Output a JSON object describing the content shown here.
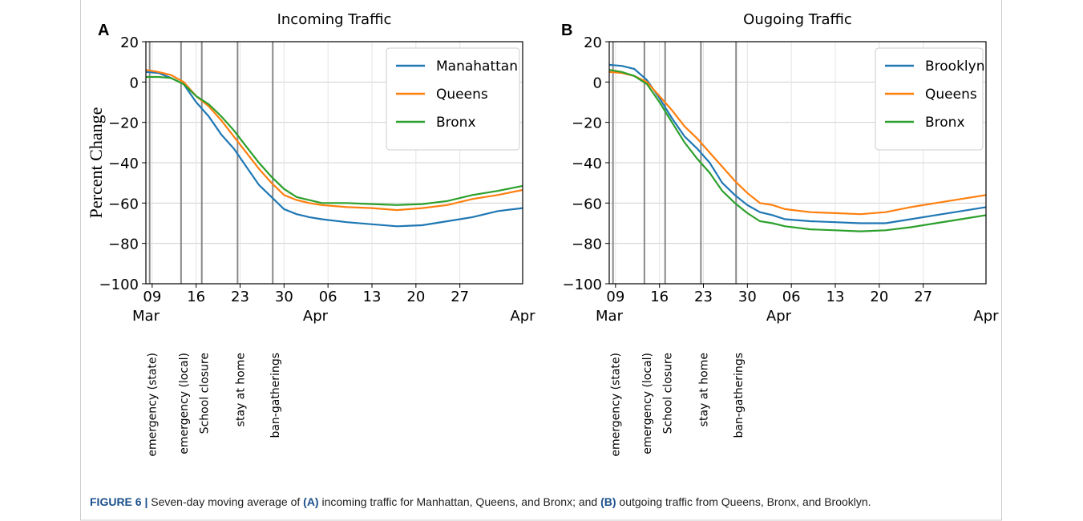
{
  "chart_data": [
    {
      "type": "line",
      "panel": "A",
      "title": "Incoming Traffic",
      "ylabel": "Percent Change",
      "x": [
        8,
        10,
        12,
        14,
        16,
        18,
        20,
        22,
        24,
        26,
        28,
        30,
        32,
        34,
        36,
        40,
        44,
        48,
        52,
        56,
        60,
        64,
        68
      ],
      "series": [
        {
          "name": "Manahattan",
          "color": "#1f77b4",
          "values": [
            5,
            4.5,
            2,
            -1,
            -10,
            -17,
            -26,
            -33,
            -42,
            -51,
            -57,
            -63,
            -65.5,
            -67,
            -68,
            -69.5,
            -70.5,
            -71.5,
            -71,
            -69,
            -67,
            -64,
            -62.5
          ]
        },
        {
          "name": "Queens",
          "color": "#ff7f0e",
          "values": [
            6,
            5,
            3.5,
            0,
            -7,
            -12,
            -19,
            -27,
            -35,
            -43,
            -50,
            -56,
            -58.5,
            -60,
            -61,
            -62,
            -62.5,
            -63.5,
            -62.5,
            -61,
            -58,
            -56,
            -53.5
          ]
        },
        {
          "name": "Bronx",
          "color": "#2ca02c",
          "values": [
            2.5,
            2.5,
            2,
            -1,
            -7,
            -11,
            -17,
            -24,
            -32,
            -40,
            -47,
            -53,
            -57,
            -58.5,
            -60,
            -60,
            -60.5,
            -61,
            -60.5,
            -59,
            -56,
            -54,
            -51.5
          ]
        }
      ],
      "xlim": [
        8,
        68
      ],
      "ylim": [
        -100,
        20
      ],
      "xticks": [
        {
          "value": 9,
          "label": "09"
        },
        16,
        23,
        30,
        {
          "value": 37,
          "label": "06"
        },
        {
          "value": 44,
          "label": "13"
        },
        {
          "value": 51,
          "label": "20"
        },
        {
          "value": 58,
          "label": "27"
        }
      ],
      "month_labels": [
        {
          "value": 8,
          "label": "Mar"
        },
        {
          "value": 35,
          "label": "Apr"
        },
        {
          "value": 68,
          "label": "Apr"
        }
      ],
      "yticks": [
        20,
        0,
        {
          "value": -20,
          "label": "−20"
        },
        {
          "value": -40,
          "label": "−40"
        },
        {
          "value": -60,
          "label": "−60"
        },
        {
          "value": -80,
          "label": "−80"
        },
        {
          "value": -100,
          "label": "−100"
        }
      ],
      "grid": true,
      "legend": "upper right",
      "events": [
        {
          "label": "emergency (state)",
          "x": 8.6
        },
        {
          "label": "emergency (local)",
          "x": 13.6
        },
        {
          "label": "School closure",
          "x": 16.9
        },
        {
          "label": "stay at home",
          "x": 22.6
        },
        {
          "label": "ban-gatherings",
          "x": 28.2
        }
      ]
    },
    {
      "type": "line",
      "panel": "B",
      "title": "Ougoing Traffic",
      "x": [
        8,
        10,
        12,
        14,
        16,
        18,
        20,
        22,
        24,
        26,
        28,
        30,
        32,
        34,
        36,
        40,
        44,
        48,
        52,
        56,
        60,
        64,
        68
      ],
      "series": [
        {
          "name": "Brooklyn",
          "color": "#1f77b4",
          "values": [
            8.5,
            8,
            6.5,
            1,
            -8,
            -18,
            -27,
            -33,
            -40,
            -50,
            -56,
            -61,
            -64.5,
            -66,
            -68,
            -69,
            -69.5,
            -70,
            -70,
            -68,
            -66,
            -64,
            -62
          ]
        },
        {
          "name": "Queens",
          "color": "#ff7f0e",
          "values": [
            5,
            4.5,
            3,
            0,
            -7,
            -14,
            -22,
            -28,
            -35,
            -42,
            -49,
            -55,
            -60,
            -61,
            -63,
            -64.5,
            -65,
            -65.5,
            -64.5,
            -62,
            -60,
            -58,
            -56
          ]
        },
        {
          "name": "Bronx",
          "color": "#2ca02c",
          "values": [
            6,
            5,
            3,
            -1,
            -10,
            -20,
            -30,
            -38,
            -45,
            -54,
            -60,
            -65,
            -69,
            -70,
            -71.5,
            -73,
            -73.5,
            -74,
            -73.5,
            -72,
            -70,
            -68,
            -66
          ]
        }
      ],
      "xlim": [
        8,
        68
      ],
      "ylim": [
        -100,
        20
      ],
      "xticks": [
        {
          "value": 9,
          "label": "09"
        },
        16,
        23,
        30,
        {
          "value": 37,
          "label": "06"
        },
        {
          "value": 44,
          "label": "13"
        },
        {
          "value": 51,
          "label": "20"
        },
        {
          "value": 58,
          "label": "27"
        }
      ],
      "month_labels": [
        {
          "value": 8,
          "label": "Mar"
        },
        {
          "value": 35,
          "label": "Apr"
        },
        {
          "value": 68,
          "label": "Apr"
        }
      ],
      "yticks": [
        20,
        0,
        {
          "value": -20,
          "label": "−20"
        },
        {
          "value": -40,
          "label": "−40"
        },
        {
          "value": -60,
          "label": "−60"
        },
        {
          "value": -80,
          "label": "−80"
        },
        {
          "value": -100,
          "label": "−100"
        }
      ],
      "grid": true,
      "legend": "upper right",
      "events": [
        {
          "label": "emergency (state)",
          "x": 8.6
        },
        {
          "label": "emergency (local)",
          "x": 13.6
        },
        {
          "label": "School closure",
          "x": 16.9
        },
        {
          "label": "stay at home",
          "x": 22.6
        },
        {
          "label": "ban-gatherings",
          "x": 28.2
        }
      ]
    }
  ],
  "caption": {
    "parts": [
      {
        "text": "FIGURE 6 |",
        "bold": true
      },
      {
        "text": " Seven-day moving average of ",
        "bold": false
      },
      {
        "text": "(A)",
        "bold": true
      },
      {
        "text": " incoming traffic for Manhattan, Queens, and Bronx; and ",
        "bold": false
      },
      {
        "text": "(B)",
        "bold": true
      },
      {
        "text": " outgoing traffic from Queens, Bronx, and Brooklyn.",
        "bold": false
      }
    ]
  }
}
